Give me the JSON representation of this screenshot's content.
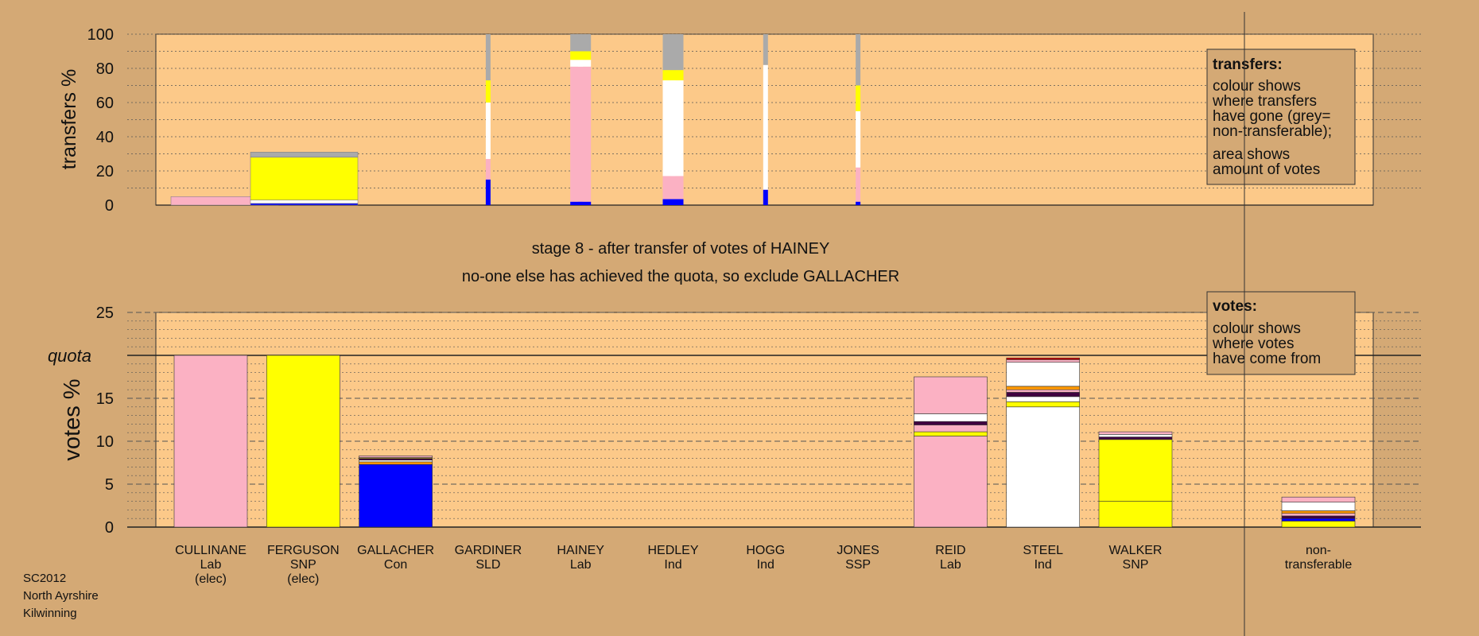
{
  "colors": {
    "background": "#d4a975",
    "plot_bg": "#fcc989",
    "Lab": "#fbb1c3",
    "SNP": "#ffff00",
    "Con": "#0000ff",
    "Ind": "#ffffff",
    "SSP": "#cc0000",
    "SLD": "#ff9900",
    "nontransferable": "#aaaaaa",
    "dark": "#400040"
  },
  "stage": {
    "line1": "stage 8 - after transfer of votes of HAINEY",
    "line2": "no-one else has achieved the quota, so exclude GALLACHER"
  },
  "footer": {
    "line1": "SC2012",
    "line2": "North Ayrshire",
    "line3": "Kilwinning"
  },
  "chart_data": [
    {
      "type": "bar",
      "title": "",
      "ylabel": "transfers %",
      "ylim": [
        0,
        100
      ],
      "yticks": [
        0,
        20,
        40,
        60,
        80,
        100
      ],
      "legend": {
        "title": "transfers:",
        "lines": [
          "colour shows",
          "where transfers",
          "have gone (grey=",
          "non-transferable);"
        ],
        "lines2": [
          "area shows",
          "amount of votes"
        ]
      },
      "bars": [
        {
          "column": 0,
          "wide": true,
          "segments": [
            {
              "color": "Lab",
              "value": 5
            }
          ]
        },
        {
          "column": 1,
          "wide": true,
          "segments": [
            {
              "color": "Con",
              "value": 1
            },
            {
              "color": "Ind",
              "value": 2
            },
            {
              "color": "SNP",
              "value": 25
            },
            {
              "color": "nontransferable",
              "value": 3
            }
          ]
        },
        {
          "column": 3,
          "wide": false,
          "segments": [
            {
              "color": "Con",
              "value": 15
            },
            {
              "color": "Lab",
              "value": 12
            },
            {
              "color": "Ind",
              "value": 33
            },
            {
              "color": "SNP",
              "value": 13
            },
            {
              "color": "nontransferable",
              "value": 27
            }
          ]
        },
        {
          "column": 4,
          "wide": false,
          "segments": [
            {
              "color": "Con",
              "value": 2
            },
            {
              "color": "Lab",
              "value": 79
            },
            {
              "color": "Ind",
              "value": 4
            },
            {
              "color": "SNP",
              "value": 5
            },
            {
              "color": "nontransferable",
              "value": 10
            }
          ]
        },
        {
          "column": 5,
          "wide": false,
          "segments": [
            {
              "color": "Con",
              "value": 3.5
            },
            {
              "color": "Lab",
              "value": 13.5
            },
            {
              "color": "Ind",
              "value": 56
            },
            {
              "color": "SNP",
              "value": 6
            },
            {
              "color": "nontransferable",
              "value": 21
            }
          ]
        },
        {
          "column": 6,
          "wide": false,
          "segments": [
            {
              "color": "Con",
              "value": 9
            },
            {
              "color": "Ind",
              "value": 73
            },
            {
              "color": "nontransferable",
              "value": 18
            }
          ]
        },
        {
          "column": 7,
          "wide": false,
          "segments": [
            {
              "color": "Con",
              "value": 2
            },
            {
              "color": "Lab",
              "value": 20
            },
            {
              "color": "Ind",
              "value": 33
            },
            {
              "color": "SNP",
              "value": 15
            },
            {
              "color": "nontransferable",
              "value": 30
            }
          ]
        }
      ]
    },
    {
      "type": "bar",
      "title": "",
      "ylabel": "votes %",
      "ylim": [
        0,
        25
      ],
      "yticks": [
        0,
        5,
        10,
        15,
        20,
        25
      ],
      "quota": 20,
      "quota_label": "quota",
      "legend": {
        "title": "votes:",
        "lines": [
          "colour shows",
          "where votes",
          "have come from"
        ]
      },
      "candidates": [
        {
          "name": "CULLINANE",
          "party": "Lab",
          "status": "(elec)"
        },
        {
          "name": "FERGUSON",
          "party": "SNP",
          "status": "(elec)"
        },
        {
          "name": "GALLACHER",
          "party": "Con",
          "status": ""
        },
        {
          "name": "GARDINER",
          "party": "SLD",
          "status": ""
        },
        {
          "name": "HAINEY",
          "party": "Lab",
          "status": ""
        },
        {
          "name": "HEDLEY",
          "party": "Ind",
          "status": ""
        },
        {
          "name": "HOGG",
          "party": "Ind",
          "status": ""
        },
        {
          "name": "JONES",
          "party": "SSP",
          "status": ""
        },
        {
          "name": "REID",
          "party": "Lab",
          "status": ""
        },
        {
          "name": "STEEL",
          "party": "Ind",
          "status": ""
        },
        {
          "name": "WALKER",
          "party": "SNP",
          "status": ""
        }
      ],
      "nontransferable_label": [
        "non-",
        "transferable"
      ],
      "bars": [
        {
          "column": 0,
          "segments": [
            {
              "color": "Lab",
              "value": 20
            }
          ]
        },
        {
          "column": 1,
          "segments": [
            {
              "color": "SNP",
              "value": 20
            }
          ]
        },
        {
          "column": 2,
          "segments": [
            {
              "color": "Con",
              "value": 7.3
            },
            {
              "color": "SLD",
              "value": 0.3
            },
            {
              "color": "Ind",
              "value": 0.2
            },
            {
              "color": "dark",
              "value": 0.2
            },
            {
              "color": "SNP",
              "value": 0.1
            },
            {
              "color": "Lab",
              "value": 0.2
            }
          ]
        },
        {
          "column": 8,
          "segments": [
            {
              "color": "Lab",
              "value": 10.6
            },
            {
              "color": "SNP",
              "value": 0.5
            },
            {
              "color": "Lab",
              "value": 0.8
            },
            {
              "color": "dark",
              "value": 0.4
            },
            {
              "color": "Ind",
              "value": 0.9
            },
            {
              "color": "Lab",
              "value": 4.3
            }
          ]
        },
        {
          "column": 9,
          "segments": [
            {
              "color": "Ind",
              "value": 14.0
            },
            {
              "color": "SNP",
              "value": 0.6
            },
            {
              "color": "Ind",
              "value": 0.6
            },
            {
              "color": "dark",
              "value": 0.5
            },
            {
              "color": "Lab",
              "value": 0.3
            },
            {
              "color": "SLD",
              "value": 0.4
            },
            {
              "color": "Ind",
              "value": 2.8
            },
            {
              "color": "Lab",
              "value": 0.3
            },
            {
              "color": "SSP",
              "value": 0.2
            }
          ]
        },
        {
          "column": 10,
          "segments": [
            {
              "color": "SNP",
              "value": 3.0
            },
            {
              "color": "SNP",
              "value": 7.2
            },
            {
              "color": "dark",
              "value": 0.3
            },
            {
              "color": "Ind",
              "value": 0.3
            },
            {
              "color": "Lab",
              "value": 0.3
            }
          ]
        },
        {
          "column": 11,
          "segments": [
            {
              "color": "SNP",
              "value": 0.7
            },
            {
              "color": "Con",
              "value": 0.3
            },
            {
              "color": "dark",
              "value": 0.3
            },
            {
              "color": "Lab",
              "value": 0.3
            },
            {
              "color": "SLD",
              "value": 0.3
            },
            {
              "color": "Ind",
              "value": 1.0
            },
            {
              "color": "Lab",
              "value": 0.6
            }
          ]
        }
      ]
    }
  ]
}
